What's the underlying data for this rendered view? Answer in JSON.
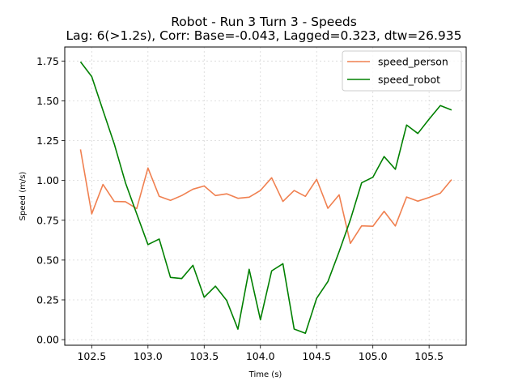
{
  "chart_data": {
    "type": "line",
    "title": "Robot - Run 3 Turn 3 - Speeds",
    "subtitle": "Lag: 6(>1.2s), Corr: Base=-0.043, Lagged=0.323, dtw=26.935",
    "xlabel": "Time (s)",
    "ylabel": "Speed (m/s)",
    "xlim": [
      102.26,
      105.83
    ],
    "ylim": [
      -0.035,
      1.838
    ],
    "xticks": [
      "102.5",
      "103.0",
      "103.5",
      "104.0",
      "104.5",
      "105.0",
      "105.5"
    ],
    "xtick_values": [
      102.5,
      103.0,
      103.5,
      104.0,
      104.5,
      105.0,
      105.5
    ],
    "yticks": [
      "0.00",
      "0.25",
      "0.50",
      "0.75",
      "1.00",
      "1.25",
      "1.50",
      "1.75"
    ],
    "ytick_values": [
      0.0,
      0.25,
      0.5,
      0.75,
      1.0,
      1.25,
      1.5,
      1.75
    ],
    "grid": true,
    "legend_position": "top-right",
    "x": [
      102.4,
      102.5,
      102.6,
      102.7,
      102.8,
      102.9,
      103.0,
      103.1,
      103.2,
      103.3,
      103.4,
      103.5,
      103.6,
      103.7,
      103.8,
      103.9,
      104.0,
      104.1,
      104.2,
      104.3,
      104.4,
      104.5,
      104.6,
      104.7,
      104.8,
      104.9,
      105.0,
      105.1,
      105.2,
      105.3,
      105.4,
      105.5,
      105.6,
      105.7
    ],
    "series": [
      {
        "name": "speed_person",
        "color": "#f08050",
        "values": [
          1.195,
          0.79,
          0.975,
          0.868,
          0.866,
          0.823,
          1.078,
          0.9,
          0.875,
          0.905,
          0.945,
          0.965,
          0.905,
          0.916,
          0.888,
          0.895,
          0.937,
          1.017,
          0.868,
          0.937,
          0.9,
          1.007,
          0.825,
          0.91,
          0.605,
          0.715,
          0.712,
          0.806,
          0.714,
          0.896,
          0.87,
          0.893,
          0.92,
          1.005
        ]
      },
      {
        "name": "speed_robot",
        "color": "#008000",
        "values": [
          1.745,
          1.652,
          1.44,
          1.23,
          0.985,
          0.79,
          0.597,
          0.632,
          0.391,
          0.384,
          0.467,
          0.266,
          0.336,
          0.246,
          0.066,
          0.442,
          0.125,
          0.432,
          0.477,
          0.067,
          0.04,
          0.26,
          0.365,
          0.553,
          0.753,
          0.985,
          1.02,
          1.15,
          1.07,
          1.348,
          1.295,
          1.385,
          1.47,
          1.442
        ]
      }
    ]
  }
}
